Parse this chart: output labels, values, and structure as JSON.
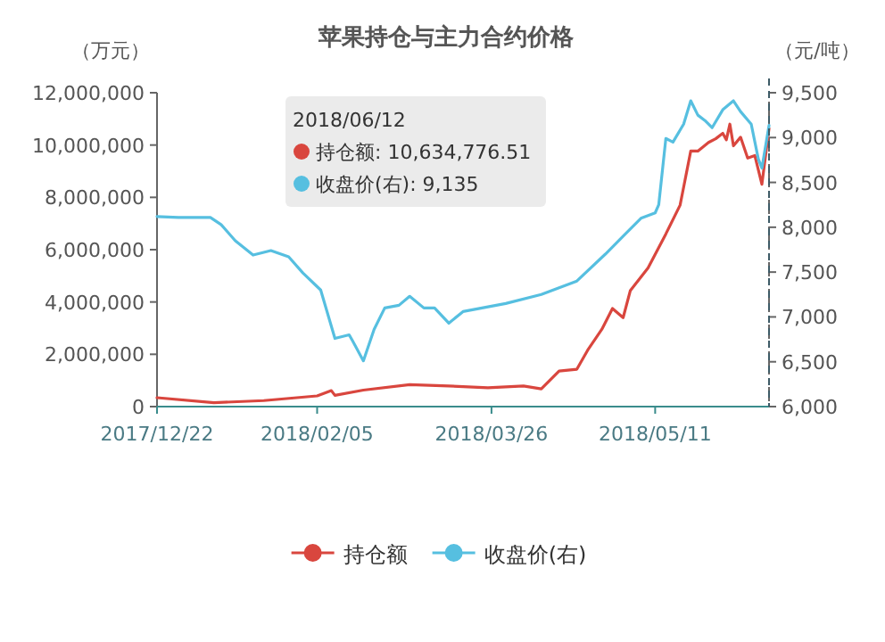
{
  "chart_data": {
    "type": "line",
    "title": "苹果持仓与主力合约价格",
    "ylabel": "（万元）",
    "y2label": "（元/吨）",
    "xlim": [
      "2017-12-22",
      "2018-06-12"
    ],
    "xticks": [
      {
        "value": "2017-12-22",
        "label": "2017/12/22"
      },
      {
        "value": "2018-02-05",
        "label": "2018/02/05"
      },
      {
        "value": "2018-03-26",
        "label": "2018/03/26"
      },
      {
        "value": "2018-05-11",
        "label": "2018/05/11"
      }
    ],
    "ylim": [
      0,
      12000000
    ],
    "yticks": [
      {
        "value": 0,
        "label": "0"
      },
      {
        "value": 2000000,
        "label": "2,000,000"
      },
      {
        "value": 4000000,
        "label": "4,000,000"
      },
      {
        "value": 6000000,
        "label": "6,000,000"
      },
      {
        "value": 8000000,
        "label": "8,000,000"
      },
      {
        "value": 10000000,
        "label": "10,000,000"
      },
      {
        "value": 12000000,
        "label": "12,000,000"
      }
    ],
    "y2lim": [
      6000,
      9500
    ],
    "y2ticks": [
      {
        "value": 6000,
        "label": "6,000"
      },
      {
        "value": 6500,
        "label": "6,500"
      },
      {
        "value": 7000,
        "label": "7,000"
      },
      {
        "value": 7500,
        "label": "7,500"
      },
      {
        "value": 8000,
        "label": "8,000"
      },
      {
        "value": 8500,
        "label": "8,500"
      },
      {
        "value": 9000,
        "label": "9,000"
      },
      {
        "value": 9500,
        "label": "9,500"
      }
    ],
    "series": [
      {
        "name": "持仓额",
        "color": "#d9463e",
        "x": [
          "2017-12-22",
          "2018-01-07",
          "2018-01-21",
          "2018-02-05",
          "2018-02-09",
          "2018-02-10",
          "2018-02-18",
          "2018-03-03",
          "2018-03-14",
          "2018-03-25",
          "2018-04-04",
          "2018-04-09",
          "2018-04-14",
          "2018-04-19",
          "2018-04-22",
          "2018-04-26",
          "2018-04-29",
          "2018-05-02",
          "2018-05-04",
          "2018-05-09",
          "2018-05-14",
          "2018-05-18",
          "2018-05-21",
          "2018-05-23",
          "2018-05-26",
          "2018-05-28",
          "2018-05-30",
          "2018-05-31",
          "2018-06-01",
          "2018-06-02",
          "2018-06-04",
          "2018-06-06",
          "2018-06-08",
          "2018-06-10",
          "2018-06-12"
        ],
        "values": [
          340000,
          150000,
          230000,
          410000,
          610000,
          430000,
          630000,
          840000,
          790000,
          720000,
          790000,
          680000,
          1360000,
          1430000,
          2150000,
          2950000,
          3750000,
          3400000,
          4430000,
          5300000,
          6600000,
          7700000,
          9770000,
          9770000,
          10100000,
          10240000,
          10450000,
          10200000,
          10800000,
          9970000,
          10300000,
          9500000,
          9600000,
          8500000,
          10634776.51
        ]
      },
      {
        "name": "收盘价(右)",
        "color": "#56bfe0",
        "axis": "y2",
        "x": [
          "2017-12-22",
          "2017-12-28",
          "2018-01-06",
          "2018-01-09",
          "2018-01-13",
          "2018-01-18",
          "2018-01-23",
          "2018-01-28",
          "2018-02-01",
          "2018-02-06",
          "2018-02-10",
          "2018-02-14",
          "2018-02-15",
          "2018-02-18",
          "2018-02-21",
          "2018-02-24",
          "2018-02-28",
          "2018-03-03",
          "2018-03-07",
          "2018-03-10",
          "2018-03-14",
          "2018-03-18",
          "2018-03-30",
          "2018-04-09",
          "2018-04-19",
          "2018-04-27",
          "2018-05-02",
          "2018-05-07",
          "2018-05-11",
          "2018-05-12",
          "2018-05-14",
          "2018-05-16",
          "2018-05-19",
          "2018-05-21",
          "2018-05-23",
          "2018-05-25",
          "2018-05-27",
          "2018-05-30",
          "2018-06-02",
          "2018-06-04",
          "2018-06-07",
          "2018-06-09",
          "2018-06-10",
          "2018-06-12"
        ],
        "values": [
          8120,
          8110,
          8110,
          8030,
          7850,
          7690,
          7740,
          7670,
          7490,
          7300,
          6760,
          6800,
          6730,
          6510,
          6860,
          7100,
          7130,
          7230,
          7100,
          7100,
          6930,
          7060,
          7150,
          7250,
          7400,
          7700,
          7900,
          8100,
          8160,
          8250,
          8990,
          8950,
          9150,
          9410,
          9250,
          9190,
          9110,
          9310,
          9410,
          9290,
          9150,
          8760,
          8660,
          9135
        ]
      }
    ],
    "ref_lines": [
      {
        "axis": "x",
        "value": "2018-06-12",
        "color": "#3d5a66",
        "line_style": "dashed"
      }
    ],
    "annotations": [
      "2018/06/12",
      "持仓额: 10,634,776.51",
      "收盘价(右): 9,135"
    ],
    "legend": "bottom"
  }
}
